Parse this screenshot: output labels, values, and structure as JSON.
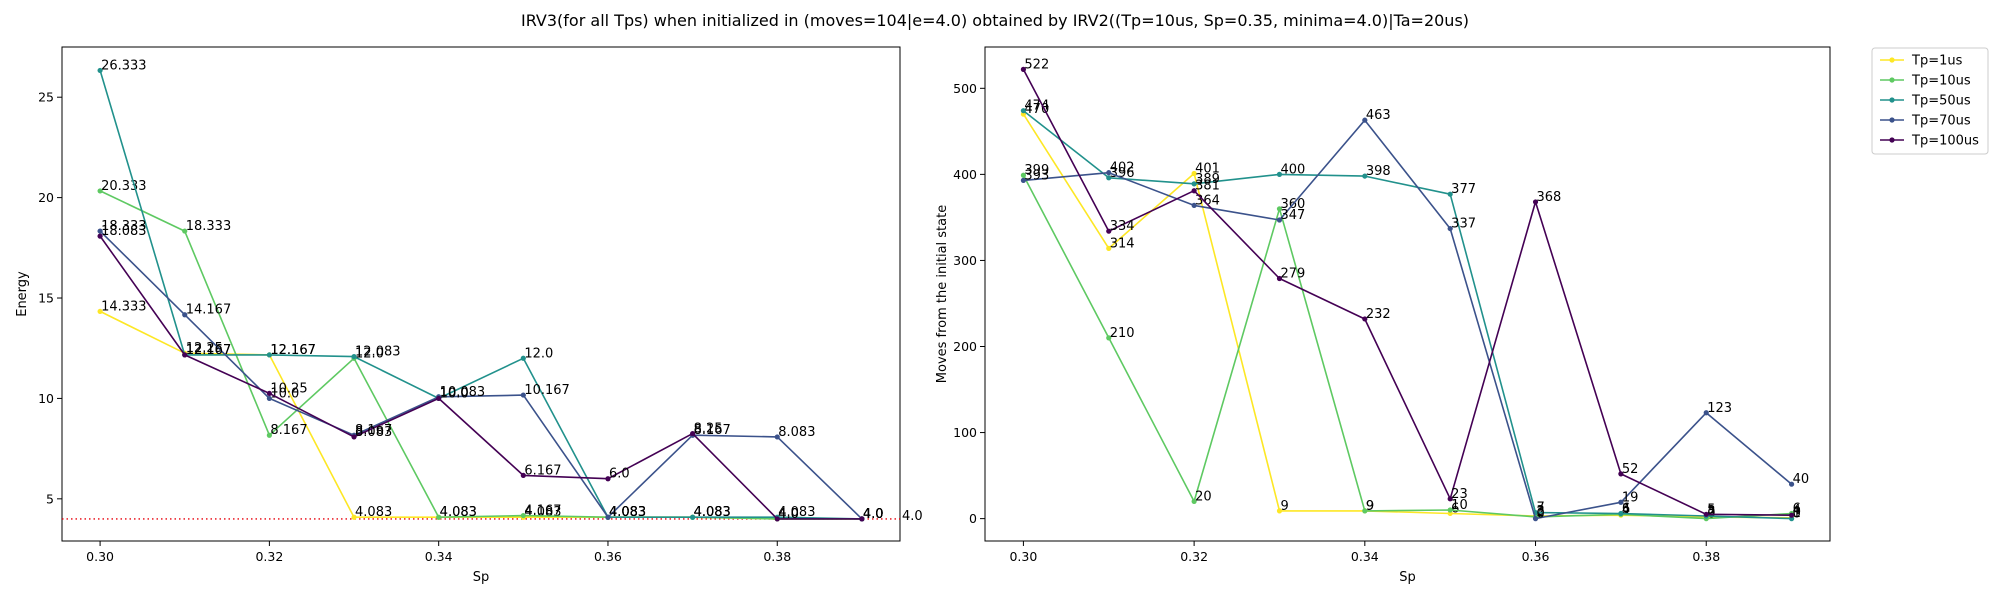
{
  "figure_title": "IRV3(for all Tps) when initialized in (moves=104|e=4.0) obtained by IRV2((Tp=10us, Sp=0.35, minima=4.0)|Ta=20us)",
  "colors": {
    "Tp=1us": "#fde725",
    "Tp=10us": "#5ec962",
    "Tp=50us": "#21918c",
    "Tp=70us": "#3b528b",
    "Tp=100us": "#440154",
    "reference_line": "#e8000b"
  },
  "legend": [
    "Tp=1us",
    "Tp=10us",
    "Tp=50us",
    "Tp=70us",
    "Tp=100us"
  ],
  "chart_data": [
    {
      "type": "line",
      "title": "",
      "xlabel": "Sp",
      "ylabel": "Energy",
      "x": [
        0.3,
        0.31,
        0.32,
        0.33,
        0.34,
        0.35,
        0.36,
        0.37,
        0.38,
        0.39
      ],
      "xticks": [
        "0.30",
        "0.32",
        "0.34",
        "0.36",
        "0.38"
      ],
      "xtick_values": [
        0.3,
        0.32,
        0.34,
        0.36,
        0.38
      ],
      "yticks": [
        "5",
        "10",
        "15",
        "20",
        "25"
      ],
      "ytick_values": [
        5,
        10,
        15,
        20,
        25
      ],
      "xlim": [
        0.2955,
        0.3945
      ],
      "ylim": [
        2.9,
        27.5
      ],
      "reference_line": {
        "y": 4.0,
        "label": "4.0",
        "style": "dotted"
      },
      "legend_position": "outside-right",
      "series": [
        {
          "name": "Tp=1us",
          "values": [
            14.333,
            12.25,
            12.167,
            4.083,
            4.083,
            4.083,
            4.083,
            4.083,
            4.0,
            4.0
          ],
          "labels": [
            "14.333",
            "12.25",
            "12.167",
            "4.083",
            "4.083",
            "4.083",
            "4.083",
            "4.083",
            "4.0",
            "4.0"
          ]
        },
        {
          "name": "Tp=10us",
          "values": [
            20.333,
            18.333,
            8.167,
            12.0,
            4.083,
            4.167,
            4.083,
            4.083,
            4.0,
            4.0
          ],
          "labels": [
            "20.333",
            "18.333",
            "8.167",
            "12.0",
            "4.083",
            "4.167",
            "4.083",
            "4.083",
            "4.0",
            "4.0"
          ]
        },
        {
          "name": "Tp=50us",
          "values": [
            26.333,
            12.167,
            12.167,
            12.083,
            10.0,
            12.0,
            4.083,
            4.083,
            4.083,
            4.0
          ],
          "labels": [
            "26.333",
            "12.167",
            "12.167",
            "12.083",
            "10.0",
            "12.0",
            "4.083",
            "4.083",
            "4.083",
            "4.0"
          ]
        },
        {
          "name": "Tp=70us",
          "values": [
            18.333,
            14.167,
            10.0,
            8.167,
            10.083,
            10.167,
            4.083,
            8.167,
            8.083,
            4.0
          ],
          "labels": [
            "18.333",
            "14.167",
            "10.0",
            "8.167",
            "10.083",
            "10.167",
            "4.083",
            "8.167",
            "8.083",
            "4.0"
          ]
        },
        {
          "name": "Tp=100us",
          "values": [
            18.083,
            12.167,
            10.25,
            8.083,
            10.0,
            6.167,
            6.0,
            8.25,
            4.0,
            4.0
          ],
          "labels": [
            "18.083",
            "12.167",
            "10.25",
            "8.083",
            "10.0",
            "6.167",
            "6.0",
            "8.25",
            "4.0",
            "4.0"
          ]
        }
      ]
    },
    {
      "type": "line",
      "title": "",
      "xlabel": "Sp",
      "ylabel": "Moves from the initial state",
      "x": [
        0.3,
        0.31,
        0.32,
        0.33,
        0.34,
        0.35,
        0.36,
        0.37,
        0.38,
        0.39
      ],
      "xticks": [
        "0.30",
        "0.32",
        "0.34",
        "0.36",
        "0.38"
      ],
      "xtick_values": [
        0.3,
        0.32,
        0.34,
        0.36,
        0.38
      ],
      "yticks": [
        "0",
        "100",
        "200",
        "300",
        "400",
        "500"
      ],
      "ytick_values": [
        0,
        100,
        200,
        300,
        400,
        500
      ],
      "xlim": [
        0.2955,
        0.3945
      ],
      "ylim": [
        -26,
        548
      ],
      "series": [
        {
          "name": "Tp=1us",
          "values": [
            470,
            314,
            401,
            9,
            9,
            6,
            3,
            4,
            2,
            1
          ],
          "labels": [
            "470",
            "314",
            "401",
            "9",
            "9",
            "6",
            "3",
            "4",
            "2",
            "1"
          ]
        },
        {
          "name": "Tp=10us",
          "values": [
            399,
            210,
            20,
            360,
            9,
            10,
            2,
            5,
            0,
            6
          ],
          "labels": [
            "399",
            "210",
            "20",
            "360",
            "9",
            "10",
            "2",
            "5",
            "0",
            "6"
          ]
        },
        {
          "name": "Tp=50us",
          "values": [
            474,
            396,
            389,
            400,
            398,
            377,
            7,
            6,
            3,
            0
          ],
          "labels": [
            "474",
            "396",
            "389",
            "400",
            "398",
            "377",
            "7",
            "6",
            "3",
            "0"
          ]
        },
        {
          "name": "Tp=70us",
          "values": [
            393,
            402,
            364,
            347,
            463,
            337,
            0,
            19,
            123,
            40
          ],
          "labels": [
            "393",
            "402",
            "364",
            "347",
            "463",
            "337",
            "0",
            "19",
            "123",
            "40"
          ]
        },
        {
          "name": "Tp=100us",
          "values": [
            522,
            334,
            381,
            279,
            232,
            23,
            368,
            52,
            5,
            4
          ],
          "labels": [
            "522",
            "334",
            "381",
            "279",
            "232",
            "23",
            "368",
            "52",
            "5",
            "4"
          ]
        }
      ]
    }
  ]
}
